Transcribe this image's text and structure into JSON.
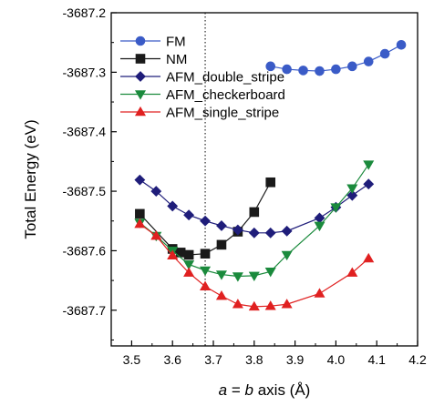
{
  "chart_data": {
    "type": "line",
    "title": "",
    "xlabel": "a = b axis (Å)",
    "xlabel_parts": {
      "a": "a",
      "eq": " = ",
      "b": "b",
      "rest": " axis (Å)"
    },
    "ylabel": "Total Energy (eV)",
    "xlim": [
      3.45,
      4.2
    ],
    "ylim": [
      -3687.76,
      -3687.2
    ],
    "xticks": [
      "3.5",
      "3.6",
      "3.7",
      "3.8",
      "3.9",
      "4.0",
      "4.1",
      "4.2"
    ],
    "yticks": [
      "-3687.2",
      "-3687.3",
      "-3687.4",
      "-3687.5",
      "-3687.6",
      "-3687.7"
    ],
    "vline_x": 3.68,
    "legend_position": "top-left",
    "series": [
      {
        "name": "FM",
        "color": "#3a5bc7",
        "marker": "circle",
        "x": [
          3.84,
          3.88,
          3.92,
          3.96,
          4.0,
          4.04,
          4.08,
          4.12,
          4.16
        ],
        "y": [
          -3687.29,
          -3687.295,
          -3687.297,
          -3687.298,
          -3687.295,
          -3687.29,
          -3687.282,
          -3687.269,
          -3687.254
        ]
      },
      {
        "name": "NM",
        "color": "#1a1a1a",
        "marker": "square",
        "x": [
          3.52,
          3.6,
          3.62,
          3.64,
          3.68,
          3.72,
          3.76,
          3.8,
          3.84
        ],
        "y": [
          -3687.538,
          -3687.597,
          -3687.603,
          -3687.607,
          -3687.605,
          -3687.59,
          -3687.568,
          -3687.535,
          -3687.485
        ]
      },
      {
        "name": "AFM_double_stripe",
        "color": "#1f1d7a",
        "marker": "diamond",
        "x": [
          3.52,
          3.56,
          3.6,
          3.64,
          3.68,
          3.72,
          3.76,
          3.8,
          3.84,
          3.88,
          3.96,
          4.0,
          4.04,
          4.08
        ],
        "y": [
          -3687.481,
          -3687.5,
          -3687.525,
          -3687.54,
          -3687.55,
          -3687.558,
          -3687.565,
          -3687.57,
          -3687.57,
          -3687.567,
          -3687.545,
          -3687.527,
          -3687.507,
          -3687.488
        ]
      },
      {
        "name": "AFM_checkerboard",
        "color": "#1a8a3c",
        "marker": "triangle-down",
        "x": [
          3.52,
          3.56,
          3.6,
          3.64,
          3.68,
          3.72,
          3.76,
          3.8,
          3.84,
          3.88,
          3.96,
          4.0,
          4.04,
          4.08
        ],
        "y": [
          -3687.553,
          -3687.575,
          -3687.6,
          -3687.623,
          -3687.633,
          -3687.64,
          -3687.643,
          -3687.642,
          -3687.635,
          -3687.607,
          -3687.558,
          -3687.527,
          -3687.495,
          -3687.455
        ]
      },
      {
        "name": "AFM_single_stripe",
        "color": "#e02020",
        "marker": "triangle-up",
        "x": [
          3.52,
          3.56,
          3.6,
          3.64,
          3.68,
          3.72,
          3.76,
          3.8,
          3.84,
          3.88,
          3.96,
          4.04,
          4.08
        ],
        "y": [
          -3687.555,
          -3687.575,
          -3687.608,
          -3687.637,
          -3687.66,
          -3687.676,
          -3687.69,
          -3687.694,
          -3687.693,
          -3687.69,
          -3687.672,
          -3687.637,
          -3687.613
        ]
      }
    ]
  }
}
